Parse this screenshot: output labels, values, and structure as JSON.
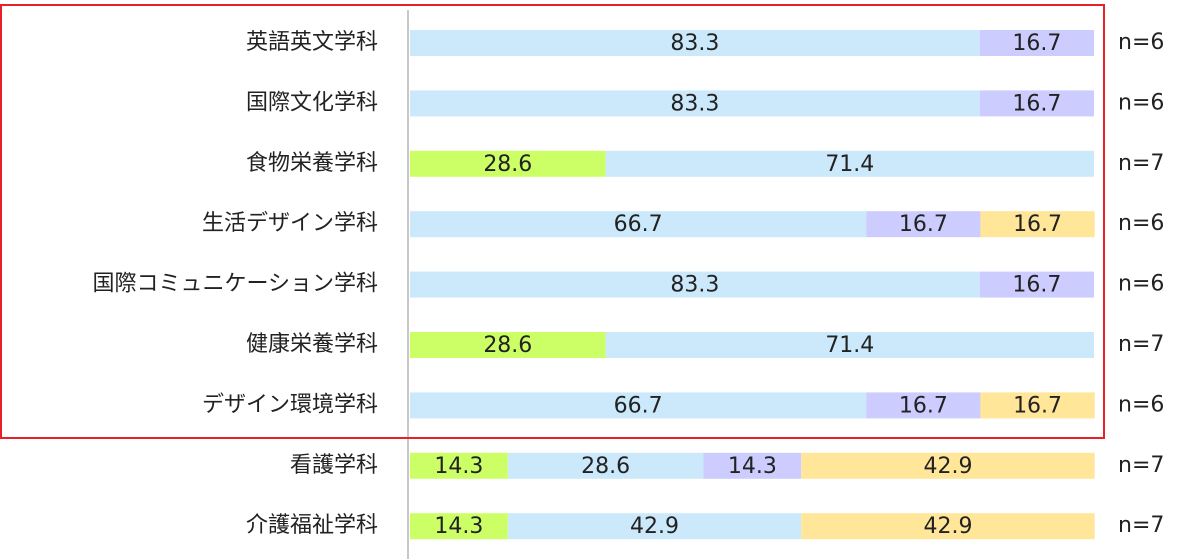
{
  "chart_data": {
    "type": "stacked-bar-horizontal",
    "categories": [
      "英語英文学科",
      "国際文化学科",
      "食物栄養学科",
      "生活デザイン学科",
      "国際コミュニケーション学科",
      "健康栄養学科",
      "デザイン環境学科",
      "看護学科",
      "介護福祉学科"
    ],
    "series": [
      {
        "color": "#ccff66",
        "values": [
          null,
          null,
          28.6,
          null,
          null,
          28.6,
          null,
          14.3,
          14.3
        ]
      },
      {
        "color": "#cce9fb",
        "values": [
          83.3,
          83.3,
          71.4,
          66.7,
          83.3,
          71.4,
          66.7,
          28.6,
          42.9
        ]
      },
      {
        "color": "#ccccff",
        "values": [
          16.7,
          16.7,
          null,
          16.7,
          16.7,
          null,
          16.7,
          14.3,
          null
        ]
      },
      {
        "color": "#ffe699",
        "values": [
          null,
          null,
          null,
          16.7,
          null,
          null,
          16.7,
          42.9,
          42.9
        ]
      }
    ],
    "annotations": [
      "n=6",
      "n=6",
      "n=7",
      "n=6",
      "n=6",
      "n=7",
      "n=6",
      "n=7",
      "n=7"
    ],
    "xlim": [
      0,
      100
    ]
  }
}
